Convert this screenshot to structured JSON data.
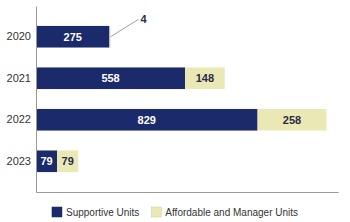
{
  "chart_data": {
    "type": "bar",
    "orientation": "horizontal",
    "stacked": true,
    "categories": [
      "2020",
      "2021",
      "2022",
      "2023"
    ],
    "series": [
      {
        "name": "Supportive Units",
        "color": "#1b2a6b",
        "values": [
          275,
          558,
          829,
          79
        ]
      },
      {
        "name": "Affordable and Manager Units",
        "color": "#eae8b4",
        "values": [
          4,
          148,
          258,
          79
        ]
      }
    ],
    "xlim": [
      0,
      1130
    ],
    "tick_labels": "y",
    "data_labels": true,
    "grid": false,
    "legend": "bottom"
  }
}
